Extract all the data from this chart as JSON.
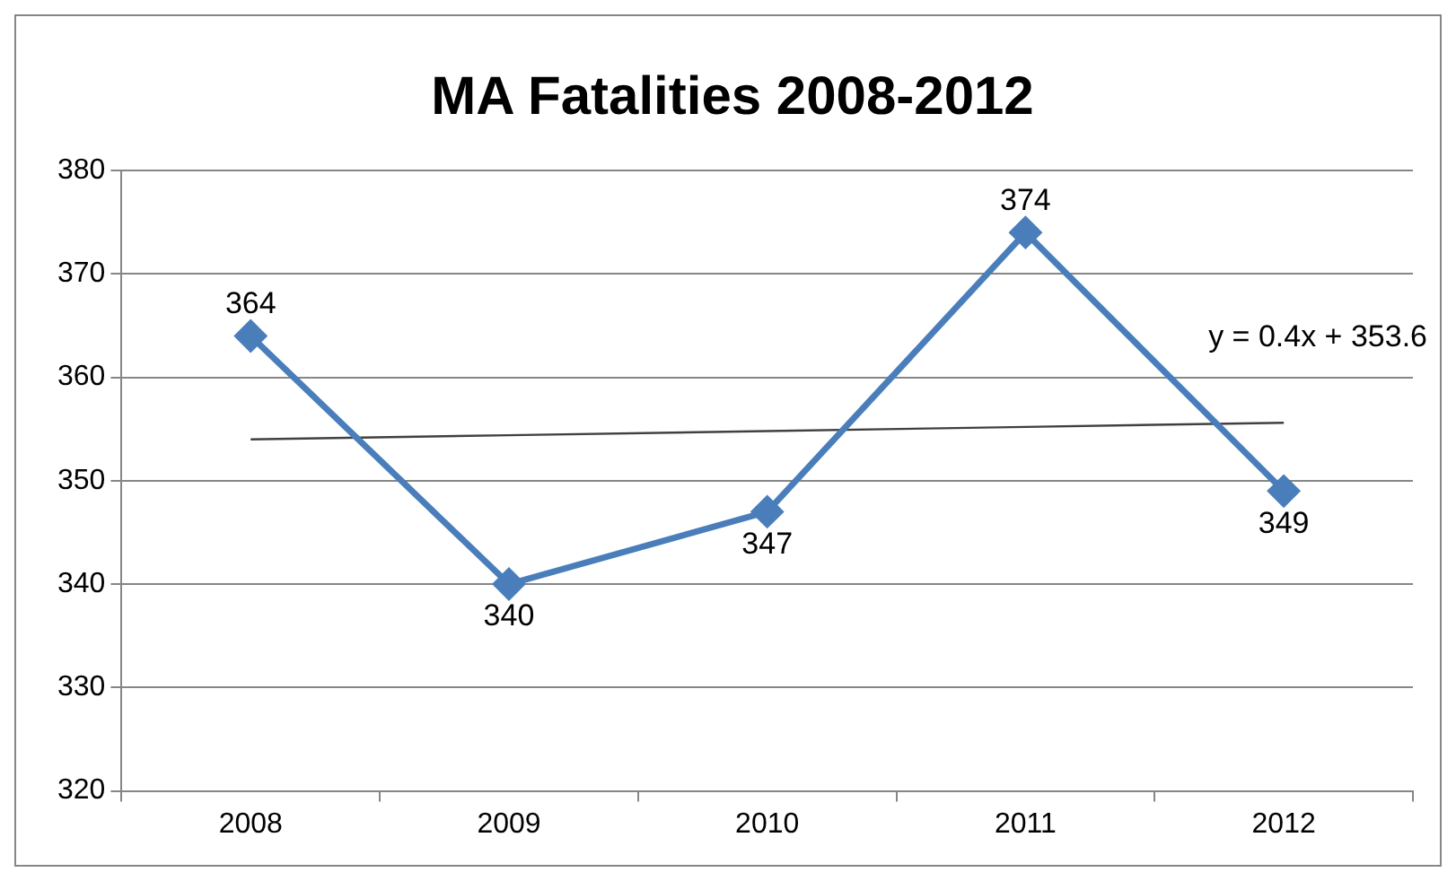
{
  "chart_data": {
    "type": "line",
    "title": "MA Fatalities 2008-2012",
    "categories": [
      "2008",
      "2009",
      "2010",
      "2011",
      "2012"
    ],
    "series": [
      {
        "color": "#4a7ebb",
        "values": [
          364,
          340,
          347,
          374,
          349
        ],
        "value_labels": [
          "364",
          "340",
          "347",
          "374",
          "349"
        ],
        "marker": "diamond"
      },
      {
        "type": "line",
        "color": "#404040",
        "values": [
          354,
          354.4,
          354.8,
          355.2,
          355.6
        ],
        "marker": "none"
      }
    ],
    "ylim": [
      320,
      380
    ],
    "yticks": [
      320,
      330,
      340,
      350,
      360,
      370,
      380
    ],
    "grid": "y",
    "legend": false,
    "annotations": [
      "y = 0.4x + 353.6"
    ]
  }
}
